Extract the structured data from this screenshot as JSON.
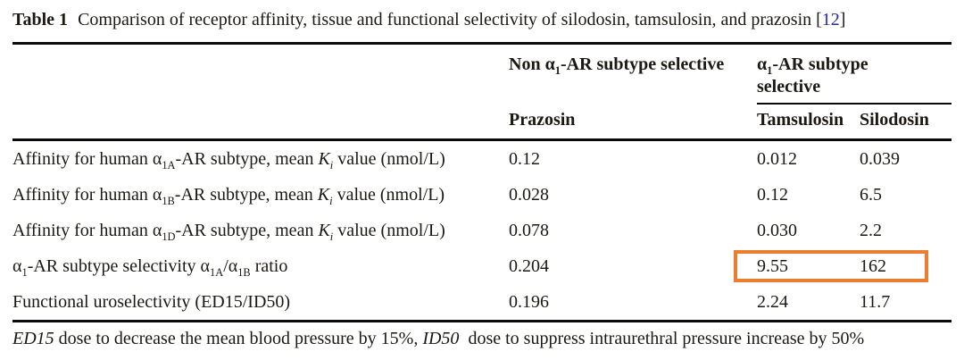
{
  "colors": {
    "accent_orange": "#ED7D31",
    "citation_blue": "#2424CC",
    "text_black": "#1C1813",
    "rule_black": "#0A0A0A"
  },
  "caption": {
    "label": "Table 1",
    "text": "Comparison of receptor affinity, tissue and functional selectivity of silodosin, tamsulosin, and prazosin",
    "bracket_open": "[",
    "citation": "12",
    "bracket_close": "]"
  },
  "header": {
    "group_nonselective_html": "Non α<sub>1</sub>-AR subtype selective",
    "group_selective_html": "α<sub>1</sub>-AR subtype<br>selective",
    "prazosin": "Prazosin",
    "tamsulosin": "Tamsulosin",
    "silodosin": "Silodosin"
  },
  "rows": [
    {
      "label_html": "Affinity for human α<sub>1A</sub>-AR subtype, mean <i>K<sub>i</sub></i> value (nmol/L)",
      "prazosin": "0.12",
      "tamsulosin": "0.012",
      "silodosin": "0.039",
      "highlighted": false
    },
    {
      "label_html": "Affinity for human α<sub>1B</sub>-AR subtype, mean <i>K<sub>i</sub></i> value (nmol/L)",
      "prazosin": "0.028",
      "tamsulosin": "0.12",
      "silodosin": "6.5",
      "highlighted": false
    },
    {
      "label_html": "Affinity for human α<sub>1D</sub>-AR subtype, mean <i>K<sub>i</sub></i> value (nmol/L)",
      "prazosin": "0.078",
      "tamsulosin": "0.030",
      "silodosin": "2.2",
      "highlighted": false
    },
    {
      "label_html": "α<sub>1</sub>-AR subtype selectivity α<sub>1A</sub>/α<sub>1B</sub> ratio",
      "prazosin": "0.204",
      "tamsulosin": "9.55",
      "silodosin": "162",
      "highlighted": true
    },
    {
      "label_html": "Functional uroselectivity (ED15/ID50)",
      "prazosin": "0.196",
      "tamsulosin": "2.24",
      "silodosin": "11.7",
      "highlighted": false
    }
  ],
  "footnote_html": "<i>ED15</i> dose to decrease the mean blood pressure by 15%, <i>ID50</i>&nbsp; dose to suppress intraurethral pressure increase by 50%"
}
